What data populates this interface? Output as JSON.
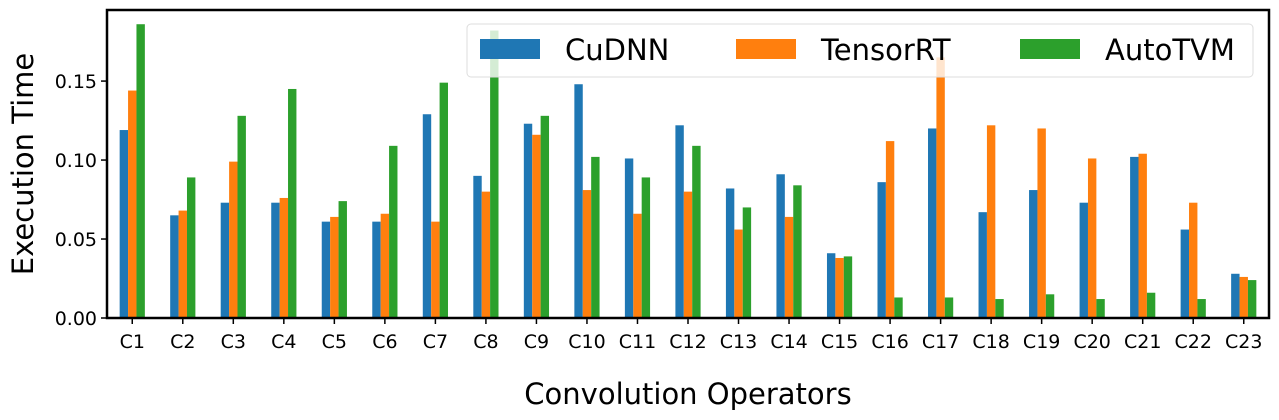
{
  "chart_data": {
    "type": "bar",
    "title": "",
    "xlabel": "Convolution Operators",
    "ylabel": "Execution Time",
    "ylim": [
      0,
      0.195
    ],
    "yticks": [
      0.0,
      0.05,
      0.1,
      0.15
    ],
    "ytick_labels": [
      "0.00",
      "0.05",
      "0.10",
      "0.15"
    ],
    "grid": false,
    "legend_position": "top-right",
    "categories": [
      "C1",
      "C2",
      "C3",
      "C4",
      "C5",
      "C6",
      "C7",
      "C8",
      "C9",
      "C10",
      "C11",
      "C12",
      "C13",
      "C14",
      "C15",
      "C16",
      "C17",
      "C18",
      "C19",
      "C20",
      "C21",
      "C22",
      "C23"
    ],
    "series": [
      {
        "name": "CuDNN",
        "color": "#1f77b4",
        "values": [
          0.119,
          0.065,
          0.073,
          0.073,
          0.061,
          0.061,
          0.129,
          0.09,
          0.123,
          0.148,
          0.101,
          0.122,
          0.082,
          0.091,
          0.041,
          0.086,
          0.12,
          0.067,
          0.081,
          0.073,
          0.102,
          0.056,
          0.028
        ]
      },
      {
        "name": "TensorRT",
        "color": "#ff7f0e",
        "values": [
          0.144,
          0.068,
          0.099,
          0.076,
          0.064,
          0.066,
          0.061,
          0.08,
          0.116,
          0.081,
          0.066,
          0.08,
          0.056,
          0.064,
          0.038,
          0.112,
          0.165,
          0.122,
          0.12,
          0.101,
          0.104,
          0.073,
          0.026
        ]
      },
      {
        "name": "AutoTVM",
        "color": "#2ca02c",
        "values": [
          0.186,
          0.089,
          0.128,
          0.145,
          0.074,
          0.109,
          0.149,
          0.182,
          0.128,
          0.102,
          0.089,
          0.109,
          0.07,
          0.084,
          0.039,
          0.013,
          0.013,
          0.012,
          0.015,
          0.012,
          0.016,
          0.012,
          0.024
        ]
      }
    ]
  }
}
